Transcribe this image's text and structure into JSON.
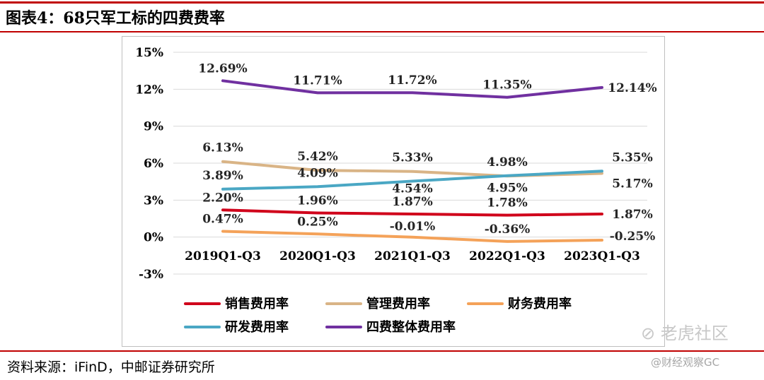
{
  "figure": {
    "title": "图表4：68只军工标的四费费率",
    "source": "资料来源：iFinD，中邮证券研究所",
    "watermark": "老虎社区",
    "watermark_sub": "@财经观察GC"
  },
  "chart_data": {
    "type": "line",
    "title": "",
    "xlabel": "",
    "ylabel": "",
    "categories": [
      "2019Q1-Q3",
      "2020Q1-Q3",
      "2021Q1-Q3",
      "2022Q1-Q3",
      "2023Q1-Q3"
    ],
    "ylim": [
      -3,
      15
    ],
    "yticks": [
      15,
      12,
      9,
      6,
      3,
      0,
      -3
    ],
    "ytick_labels": [
      "15%",
      "12%",
      "9%",
      "6%",
      "3%",
      "0%",
      "-3%"
    ],
    "grid": true,
    "legend_position": "bottom",
    "series": [
      {
        "name": "销售费用率",
        "color": "#d0021b",
        "values": [
          2.2,
          1.96,
          1.87,
          1.78,
          1.87
        ],
        "labels": [
          "2.20%",
          "1.96%",
          "1.87%",
          "1.78%",
          "1.87%"
        ]
      },
      {
        "name": "管理费用率",
        "color": "#d9b486",
        "values": [
          6.13,
          5.42,
          5.33,
          4.95,
          5.17
        ],
        "labels": [
          "6.13%",
          "5.42%",
          "5.33%",
          "4.95%",
          "5.17%"
        ]
      },
      {
        "name": "财务费用率",
        "color": "#f4a259",
        "values": [
          0.47,
          0.25,
          -0.01,
          -0.36,
          -0.25
        ],
        "labels": [
          "0.47%",
          "0.25%",
          "-0.01%",
          "-0.36%",
          "-0.25%"
        ]
      },
      {
        "name": "研发费用率",
        "color": "#4aa7c4",
        "values": [
          3.89,
          4.09,
          4.54,
          4.98,
          5.35
        ],
        "labels": [
          "3.89%",
          "4.09%",
          "4.54%",
          "4.98%",
          "5.35%"
        ]
      },
      {
        "name": "四费整体费用率",
        "color": "#7030a0",
        "values": [
          12.69,
          11.71,
          11.72,
          11.35,
          12.14
        ],
        "labels": [
          "12.69%",
          "11.71%",
          "11.72%",
          "11.35%",
          "12.14%"
        ]
      }
    ]
  }
}
